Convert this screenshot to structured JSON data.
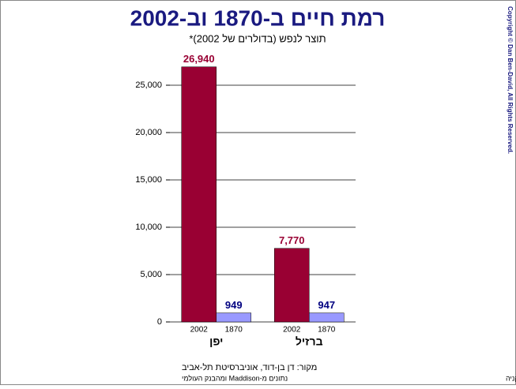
{
  "chart_data": {
    "type": "bar",
    "title": "רמת חיים ב-1870 וב-2002",
    "subtitle": "תוצר לנפש (בדולרים של 2002)*",
    "categories": [
      "יפן",
      "ברזיל"
    ],
    "series": [
      {
        "name": "2002",
        "color": "#990033",
        "label_color": "#990033",
        "values": [
          26940,
          7770
        ],
        "value_labels": [
          "26,940",
          "7,770"
        ]
      },
      {
        "name": "1870",
        "color": "#9999ff",
        "label_color": "#000080",
        "values": [
          949,
          947
        ],
        "value_labels": [
          "949",
          "947"
        ]
      }
    ],
    "ylim": [
      0,
      27500
    ],
    "yticks": [
      0,
      {
        "value": 5000,
        "label": "5,000"
      },
      {
        "value": 10000,
        "label": "10,000"
      },
      {
        "value": 15000,
        "label": "15,000"
      },
      {
        "value": 20000,
        "label": "20,000"
      },
      {
        "value": 25000,
        "label": "25,000"
      }
    ],
    "grid": true,
    "copyright": "Copyright © Dan Ben-David, All Rights Reserved.",
    "source_lines": [
      "מקור: דן בן-דוד, אוניברסיטת תל-אביב",
      "נתונים מ-Maddison ומהבנק העולמי"
    ],
    "footnote": "* לפי יחס כח קניה"
  }
}
